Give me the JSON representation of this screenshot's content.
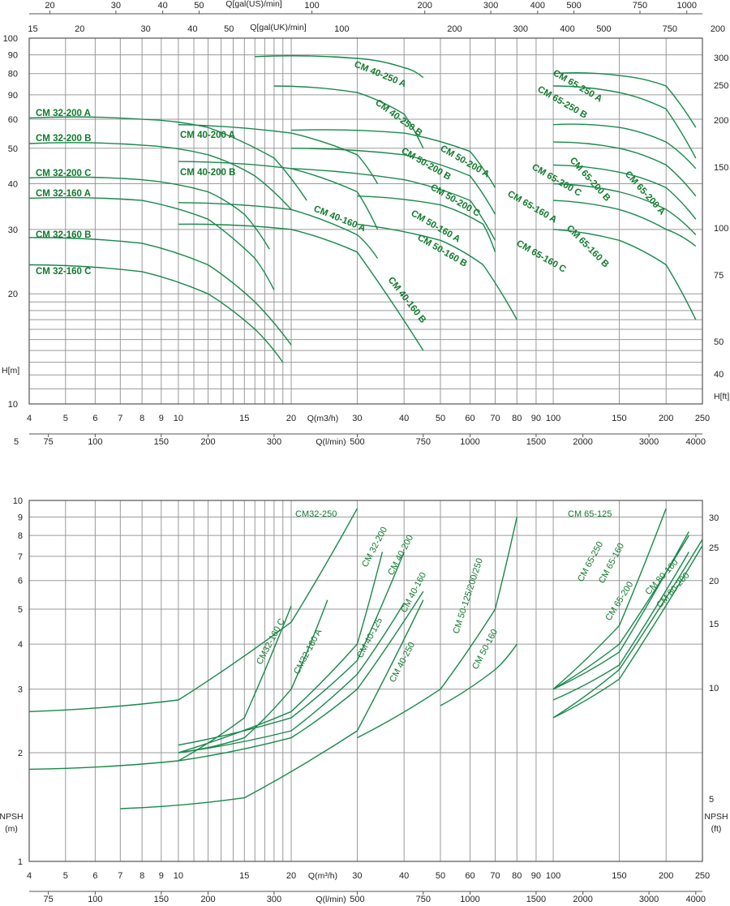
{
  "chart_data": [
    {
      "type": "line",
      "name": "head-chart",
      "scale": "log-log",
      "axes": {
        "q_m3h": {
          "label": "Q(m3/h)",
          "ticks": [
            "4",
            "5",
            "6",
            "7",
            "8",
            "9",
            "10",
            "15",
            "20",
            "30",
            "40",
            "50",
            "60",
            "70",
            "80",
            "90",
            "100",
            "150",
            "200",
            "250"
          ],
          "lim": [
            4,
            250
          ]
        },
        "q_lmin": {
          "label": "Q(l/min)",
          "ticks": [
            "75",
            "100",
            "150",
            "200",
            "300",
            "500",
            "750",
            "1000",
            "1500",
            "2000",
            "3000",
            "4000"
          ],
          "corner": "5"
        },
        "q_galus": {
          "label": "Q[gal(US)/min]",
          "ticks": [
            "20",
            "30",
            "40",
            "50",
            "100",
            "200",
            "300",
            "400",
            "500",
            "750",
            "1000"
          ]
        },
        "q_galuk": {
          "label": "Q[gal(UK)/min]",
          "ticks": [
            "15",
            "20",
            "30",
            "40",
            "50",
            "100",
            "200",
            "300",
            "400",
            "500",
            "750"
          ],
          "corner": "200"
        },
        "h_m": {
          "label": "H[m]",
          "ticks": [
            "10",
            "20",
            "30",
            "40",
            "50",
            "60",
            "90",
            "80",
            "90",
            "100"
          ],
          "lim": [
            10,
            100
          ]
        },
        "h_ft": {
          "label": "H[ft]",
          "ticks": [
            "40",
            "50",
            "75",
            "100",
            "150",
            "200",
            "250",
            "300"
          ]
        }
      },
      "series": [
        {
          "name": "CM 32-200 A",
          "x": [
            4,
            8,
            12,
            18,
            22
          ],
          "y": [
            60.5,
            60,
            57,
            47,
            36
          ]
        },
        {
          "name": "CM 32-200 B",
          "x": [
            4,
            8,
            12,
            16,
            20
          ],
          "y": [
            51.5,
            51,
            48,
            42,
            34
          ]
        },
        {
          "name": "CM 32-200 C",
          "x": [
            4,
            8,
            12,
            15,
            17.5
          ],
          "y": [
            41.5,
            41,
            38,
            33,
            26.5
          ]
        },
        {
          "name": "CM 32-160 A",
          "x": [
            4,
            8,
            12,
            16,
            18
          ],
          "y": [
            36.5,
            36,
            32,
            25,
            20.5
          ]
        },
        {
          "name": "CM 32-160 B",
          "x": [
            4,
            8,
            12,
            16,
            20
          ],
          "y": [
            28.5,
            27.5,
            24,
            19,
            14.5
          ]
        },
        {
          "name": "CM 32-160 C",
          "x": [
            4,
            8,
            12,
            16,
            19
          ],
          "y": [
            24,
            23,
            20,
            16,
            13
          ]
        },
        {
          "name": "CM 40-250 A",
          "x": [
            16,
            30,
            40,
            45
          ],
          "y": [
            89,
            88,
            83,
            78
          ]
        },
        {
          "name": "CM 40-250 B",
          "x": [
            18,
            30,
            40,
            45
          ],
          "y": [
            74,
            71,
            62,
            50
          ]
        },
        {
          "name": "CM 40-200 A",
          "x": [
            10,
            20,
            30,
            34
          ],
          "y": [
            58,
            55,
            48,
            40
          ]
        },
        {
          "name": "CM 40-200 B",
          "x": [
            10,
            20,
            30,
            34
          ],
          "y": [
            46,
            44,
            38,
            30
          ]
        },
        {
          "name": "CM 40-160 A",
          "x": [
            10,
            20,
            30,
            34
          ],
          "y": [
            35.5,
            34,
            29,
            25
          ]
        },
        {
          "name": "CM 40-160 B",
          "x": [
            10,
            20,
            30,
            45
          ],
          "y": [
            31,
            30,
            26,
            14
          ]
        },
        {
          "name": "CM 50-200 A",
          "x": [
            20,
            40,
            60,
            70
          ],
          "y": [
            56,
            55,
            49,
            39
          ]
        },
        {
          "name": "CM 50-200 B",
          "x": [
            20,
            40,
            60,
            70
          ],
          "y": [
            50,
            48,
            42,
            33
          ]
        },
        {
          "name": "CM 50-200 C",
          "x": [
            20,
            40,
            60,
            70
          ],
          "y": [
            44,
            41,
            36,
            28
          ]
        },
        {
          "name": "CM 50-160 A",
          "x": [
            30,
            50,
            65,
            70
          ],
          "y": [
            37,
            35,
            31,
            26
          ]
        },
        {
          "name": "CM 50-160 B",
          "x": [
            30,
            50,
            65,
            80
          ],
          "y": [
            31,
            28,
            24,
            17
          ]
        },
        {
          "name": "CM 65-250 A",
          "x": [
            100,
            150,
            200,
            240
          ],
          "y": [
            80,
            79,
            74,
            57
          ]
        },
        {
          "name": "CM 65-250 B",
          "x": [
            100,
            150,
            200,
            240
          ],
          "y": [
            74,
            71,
            64,
            47
          ]
        },
        {
          "name": "CM 65-200 A",
          "x": [
            100,
            150,
            200,
            240
          ],
          "y": [
            58,
            57,
            52,
            44
          ]
        },
        {
          "name": "CM 65-200 B",
          "x": [
            100,
            150,
            200,
            240
          ],
          "y": [
            52,
            50,
            45,
            37
          ]
        },
        {
          "name": "CM 65-200 C",
          "x": [
            100,
            150,
            200,
            240
          ],
          "y": [
            45,
            43,
            39,
            32
          ]
        },
        {
          "name": "CM 65-160 A",
          "x": [
            100,
            150,
            200,
            240
          ],
          "y": [
            40,
            38,
            34,
            29
          ]
        },
        {
          "name": "CM 65-160 B",
          "x": [
            100,
            150,
            200,
            240
          ],
          "y": [
            36,
            34,
            30,
            27
          ]
        },
        {
          "name": "CM 65-160 C",
          "x": [
            100,
            150,
            200,
            240
          ],
          "y": [
            30,
            28,
            24,
            17
          ]
        }
      ]
    },
    {
      "type": "line",
      "name": "npsh-chart",
      "scale": "log-log",
      "axes": {
        "q_m3h": {
          "label": "Q(m³/h)",
          "ticks": [
            "4",
            "5",
            "6",
            "7",
            "8",
            "9",
            "10",
            "15",
            "20",
            "30",
            "40",
            "50",
            "60",
            "70",
            "80",
            "90",
            "100",
            "150",
            "200",
            "250"
          ],
          "lim": [
            4,
            250
          ]
        },
        "q_lmin": {
          "label": "Q(l/min)",
          "ticks": [
            "75",
            "100",
            "150",
            "200",
            "300",
            "500",
            "750",
            "1000",
            "1500",
            "2000",
            "3000",
            "4000"
          ]
        },
        "npsh_m": {
          "label": "NPSH\n(m)",
          "ticks": [
            "1",
            "2",
            "3",
            "4",
            "5",
            "6",
            "7",
            "8",
            "9",
            "10"
          ],
          "lim": [
            1,
            10
          ]
        },
        "npsh_ft": {
          "label": "NPSH\n(ft)",
          "ticks": [
            "5",
            "10",
            "15",
            "20",
            "25",
            "30"
          ]
        }
      },
      "series": [
        {
          "name": "CM32-250",
          "x": [
            4,
            10,
            20,
            30
          ],
          "y": [
            2.6,
            2.8,
            4.6,
            9.5
          ]
        },
        {
          "name": "CM32-160 C",
          "x": [
            4,
            10,
            15,
            20
          ],
          "y": [
            1.8,
            1.9,
            2.5,
            5.1
          ]
        },
        {
          "name": "CM32-160 A",
          "x": [
            10,
            15,
            20,
            25
          ],
          "y": [
            2.0,
            2.2,
            3.0,
            5.3
          ]
        },
        {
          "name": "CM 32-200",
          "x": [
            10,
            20,
            30,
            35
          ],
          "y": [
            2.0,
            2.6,
            4.0,
            7.2
          ]
        },
        {
          "name": "CM 40-200",
          "x": [
            10,
            20,
            30,
            40
          ],
          "y": [
            2.1,
            2.5,
            3.6,
            7.2
          ]
        },
        {
          "name": "CM 40-125",
          "x": [
            10,
            20,
            30,
            40
          ],
          "y": [
            2.0,
            2.3,
            3.3,
            5.2
          ]
        },
        {
          "name": "CM 40-160",
          "x": [
            10,
            20,
            30,
            45
          ],
          "y": [
            1.9,
            2.2,
            3.0,
            5.6
          ]
        },
        {
          "name": "CM 40-250",
          "x": [
            7,
            15,
            30,
            45
          ],
          "y": [
            1.4,
            1.5,
            2.3,
            5.3
          ]
        },
        {
          "name": "CM 50-125/200/250",
          "x": [
            30,
            50,
            70,
            80
          ],
          "y": [
            2.2,
            3.0,
            5.0,
            9.0
          ]
        },
        {
          "name": "CM 50-160",
          "x": [
            50,
            70,
            80
          ],
          "y": [
            2.7,
            3.4,
            4.0
          ]
        },
        {
          "name": "CM 65-125",
          "x": [
            100,
            150,
            200
          ],
          "y": [
            3.0,
            4.5,
            9.5
          ]
        },
        {
          "name": "CM 65-250",
          "x": [
            100,
            150,
            230
          ],
          "y": [
            3.0,
            4.0,
            8.0
          ]
        },
        {
          "name": "CM 65-160",
          "x": [
            100,
            150,
            230
          ],
          "y": [
            3.0,
            3.8,
            8.2
          ]
        },
        {
          "name": "CM 65-200",
          "x": [
            100,
            150,
            230
          ],
          "y": [
            2.8,
            3.5,
            7.2
          ]
        },
        {
          "name": "CM 80-160",
          "x": [
            100,
            150,
            250
          ],
          "y": [
            2.5,
            3.4,
            7.8
          ]
        },
        {
          "name": "CM 80-200",
          "x": [
            100,
            150,
            250
          ],
          "y": [
            2.5,
            3.2,
            7.5
          ]
        }
      ]
    }
  ]
}
